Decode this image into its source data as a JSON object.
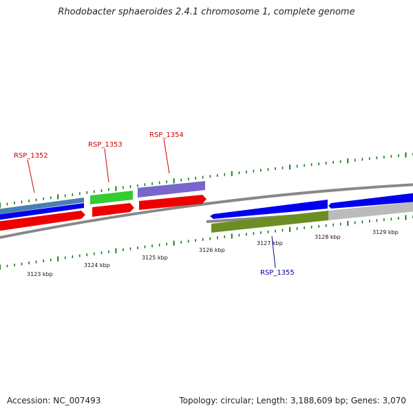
{
  "title": "Rhodobacter sphaeroides 2.4.1 chromosome 1, complete genome",
  "accession_text": "Accession: NC_007493",
  "summary_text": "Topology: circular; Length: 3,188,609 bp; Genes: 3,070",
  "kbp_labels": [
    "3123 kbp",
    "3124 kbp",
    "3125 kbp",
    "3126 kbp",
    "3127 kbp",
    "3128 kbp",
    "3129 kbp"
  ],
  "locus_labels": [
    {
      "text": "RSP_1352",
      "color": "#cc0000"
    },
    {
      "text": "RSP_1353",
      "color": "#cc0000"
    },
    {
      "text": "RSP_1354",
      "color": "#cc0000"
    },
    {
      "text": "RSP_1355",
      "color": "#000099"
    }
  ],
  "colors": {
    "backbone": "#888888",
    "ticks": "#1a7a1a",
    "forward_cds": "#0000ee",
    "reverse_cds": "#ee0000",
    "gene_blue_grey": "#4a7fb0",
    "gene_green": "#33cc33",
    "gene_purple": "#7766cc",
    "gene_olive": "#6b8e23",
    "gene_grey": "#bbbbbb"
  }
}
